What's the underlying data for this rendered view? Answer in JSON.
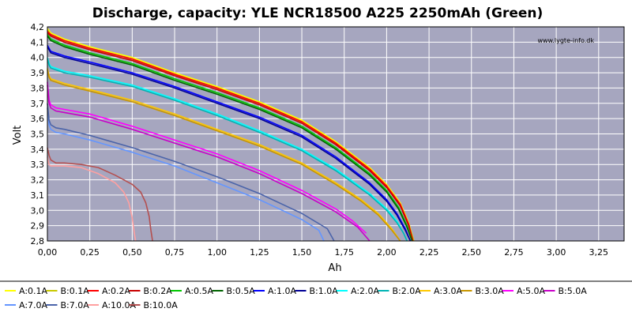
{
  "chart_data": {
    "type": "line",
    "title": "Discharge, capacity: YLE NCR18500 A225 2250mAh (Green)",
    "watermark": "www.lygte-info.dk",
    "xlabel": "Ah",
    "ylabel": "Volt",
    "xlim": [
      0,
      3.4
    ],
    "ylim": [
      2.8,
      4.2
    ],
    "x_ticks": [
      0,
      0.25,
      0.5,
      0.75,
      1.0,
      1.25,
      1.5,
      1.75,
      2.0,
      2.25,
      2.5,
      2.75,
      3.0,
      3.25
    ],
    "x_tick_labels": [
      "0,00",
      "0,25",
      "0,50",
      "0,75",
      "1,00",
      "1,25",
      "1,50",
      "1,75",
      "2,00",
      "2,25",
      "2,50",
      "2,75",
      "3,00",
      "3,25"
    ],
    "y_ticks": [
      2.8,
      2.9,
      3.0,
      3.1,
      3.2,
      3.3,
      3.4,
      3.5,
      3.6,
      3.7,
      3.8,
      3.9,
      4.0,
      4.1,
      4.2
    ],
    "y_tick_labels": [
      "2,8",
      "2,9",
      "3,0",
      "3,1",
      "3,2",
      "3,3",
      "3,4",
      "3,5",
      "3,6",
      "3,7",
      "3,8",
      "3,9",
      "4,0",
      "4,1",
      "4,2"
    ],
    "grid": true,
    "legend_position": "bottom",
    "background_color": "#a6a6bf",
    "series": [
      {
        "name": "A:0.1A",
        "color": "#ffff00",
        "x": [
          0,
          0.02,
          0.1,
          0.25,
          0.5,
          0.75,
          1.0,
          1.25,
          1.5,
          1.7,
          1.9,
          2.0,
          2.08,
          2.13,
          2.16
        ],
        "y": [
          4.19,
          4.16,
          4.12,
          4.07,
          4.0,
          3.9,
          3.81,
          3.71,
          3.59,
          3.45,
          3.28,
          3.17,
          3.05,
          2.92,
          2.8
        ]
      },
      {
        "name": "B:0.1A",
        "color": "#c8c800",
        "x": [
          0,
          0.02,
          0.1,
          0.25,
          0.5,
          0.75,
          1.0,
          1.25,
          1.5,
          1.7,
          1.9,
          2.0,
          2.08,
          2.13,
          2.16
        ],
        "y": [
          4.18,
          4.15,
          4.11,
          4.06,
          3.99,
          3.89,
          3.8,
          3.7,
          3.58,
          3.44,
          3.27,
          3.16,
          3.04,
          2.91,
          2.8
        ]
      },
      {
        "name": "A:0.2A",
        "color": "#ff0000",
        "x": [
          0,
          0.02,
          0.1,
          0.25,
          0.5,
          0.75,
          1.0,
          1.25,
          1.5,
          1.7,
          1.9,
          2.0,
          2.08,
          2.13,
          2.155
        ],
        "y": [
          4.17,
          4.15,
          4.11,
          4.06,
          3.99,
          3.89,
          3.8,
          3.7,
          3.58,
          3.44,
          3.27,
          3.16,
          3.04,
          2.91,
          2.8
        ]
      },
      {
        "name": "B:0.2A",
        "color": "#c80000",
        "x": [
          0,
          0.02,
          0.1,
          0.25,
          0.5,
          0.75,
          1.0,
          1.25,
          1.5,
          1.7,
          1.9,
          2.0,
          2.08,
          2.13,
          2.155
        ],
        "y": [
          4.16,
          4.14,
          4.1,
          4.05,
          3.98,
          3.88,
          3.79,
          3.69,
          3.57,
          3.43,
          3.26,
          3.15,
          3.03,
          2.9,
          2.8
        ]
      },
      {
        "name": "A:0.5A",
        "color": "#00c800",
        "x": [
          0,
          0.02,
          0.1,
          0.25,
          0.5,
          0.75,
          1.0,
          1.25,
          1.5,
          1.7,
          1.9,
          2.0,
          2.07,
          2.12,
          2.15
        ],
        "y": [
          4.15,
          4.12,
          4.08,
          4.03,
          3.96,
          3.86,
          3.77,
          3.67,
          3.55,
          3.41,
          3.24,
          3.13,
          3.02,
          2.9,
          2.8
        ]
      },
      {
        "name": "B:0.5A",
        "color": "#006400",
        "x": [
          0,
          0.02,
          0.1,
          0.25,
          0.5,
          0.75,
          1.0,
          1.25,
          1.5,
          1.7,
          1.9,
          2.0,
          2.07,
          2.12,
          2.15
        ],
        "y": [
          4.14,
          4.11,
          4.07,
          4.02,
          3.95,
          3.85,
          3.76,
          3.66,
          3.54,
          3.4,
          3.23,
          3.12,
          3.01,
          2.89,
          2.8
        ]
      },
      {
        "name": "A:1.0A",
        "color": "#0000ff",
        "x": [
          0,
          0.01,
          0.02,
          0.1,
          0.25,
          0.5,
          0.75,
          1.0,
          1.25,
          1.5,
          1.7,
          1.9,
          2.0,
          2.06,
          2.11,
          2.14
        ],
        "y": [
          4.08,
          4.06,
          4.04,
          4.01,
          3.97,
          3.9,
          3.81,
          3.71,
          3.61,
          3.49,
          3.35,
          3.18,
          3.07,
          2.98,
          2.88,
          2.8
        ]
      },
      {
        "name": "B:1.0A",
        "color": "#000096",
        "x": [
          0,
          0.01,
          0.02,
          0.1,
          0.25,
          0.5,
          0.75,
          1.0,
          1.25,
          1.5,
          1.7,
          1.9,
          2.0,
          2.06,
          2.11,
          2.14
        ],
        "y": [
          4.07,
          4.05,
          4.03,
          4.0,
          3.96,
          3.89,
          3.8,
          3.7,
          3.6,
          3.48,
          3.34,
          3.17,
          3.06,
          2.97,
          2.87,
          2.8
        ]
      },
      {
        "name": "A:2.0A",
        "color": "#00ffff",
        "x": [
          0,
          0.01,
          0.02,
          0.1,
          0.25,
          0.5,
          0.75,
          1.0,
          1.25,
          1.5,
          1.7,
          1.9,
          2.0,
          2.06,
          2.1,
          2.12
        ],
        "y": [
          4.0,
          3.96,
          3.94,
          3.91,
          3.88,
          3.82,
          3.73,
          3.63,
          3.52,
          3.4,
          3.27,
          3.11,
          3.01,
          2.93,
          2.85,
          2.8
        ]
      },
      {
        "name": "B:2.0A",
        "color": "#00b4b4",
        "x": [
          0,
          0.01,
          0.02,
          0.1,
          0.25,
          0.5,
          0.75,
          1.0,
          1.25,
          1.5,
          1.7,
          1.9,
          2.0,
          2.06,
          2.1,
          2.12
        ],
        "y": [
          3.99,
          3.95,
          3.93,
          3.9,
          3.87,
          3.81,
          3.72,
          3.62,
          3.51,
          3.39,
          3.26,
          3.1,
          3.0,
          2.92,
          2.85,
          2.8
        ]
      },
      {
        "name": "A:3.0A",
        "color": "#ffc800",
        "x": [
          0,
          0.01,
          0.02,
          0.1,
          0.25,
          0.5,
          0.75,
          1.0,
          1.25,
          1.5,
          1.7,
          1.85,
          1.95,
          2.03,
          2.08
        ],
        "y": [
          3.93,
          3.88,
          3.86,
          3.83,
          3.79,
          3.72,
          3.63,
          3.53,
          3.43,
          3.31,
          3.18,
          3.07,
          2.98,
          2.88,
          2.8
        ]
      },
      {
        "name": "B:3.0A",
        "color": "#c89600",
        "x": [
          0,
          0.01,
          0.02,
          0.1,
          0.25,
          0.5,
          0.75,
          1.0,
          1.25,
          1.5,
          1.7,
          1.85,
          1.95,
          2.03,
          2.08
        ],
        "y": [
          3.92,
          3.87,
          3.85,
          3.82,
          3.78,
          3.71,
          3.62,
          3.52,
          3.42,
          3.3,
          3.17,
          3.06,
          2.97,
          2.87,
          2.8
        ]
      },
      {
        "name": "A:5.0A",
        "color": "#ff00ff",
        "x": [
          0,
          0.01,
          0.02,
          0.05,
          0.1,
          0.25,
          0.5,
          0.75,
          1.0,
          1.25,
          1.5,
          1.7,
          1.8,
          1.88
        ],
        "y": [
          3.84,
          3.72,
          3.69,
          3.67,
          3.66,
          3.63,
          3.55,
          3.46,
          3.37,
          3.26,
          3.13,
          3.01,
          2.93,
          2.85
        ]
      },
      {
        "name": "B:5.0A",
        "color": "#c800c8",
        "x": [
          0,
          0.01,
          0.02,
          0.05,
          0.1,
          0.25,
          0.5,
          0.75,
          1.0,
          1.25,
          1.5,
          1.7,
          1.83,
          1.9
        ],
        "y": [
          3.82,
          3.7,
          3.67,
          3.65,
          3.64,
          3.61,
          3.53,
          3.44,
          3.35,
          3.24,
          3.11,
          2.99,
          2.89,
          2.8
        ]
      },
      {
        "name": "A:7.0A",
        "color": "#6496ff",
        "x": [
          0,
          0.01,
          0.02,
          0.05,
          0.1,
          0.25,
          0.5,
          0.75,
          1.0,
          1.25,
          1.5,
          1.6,
          1.63
        ],
        "y": [
          3.67,
          3.56,
          3.53,
          3.51,
          3.5,
          3.46,
          3.38,
          3.29,
          3.18,
          3.07,
          2.94,
          2.87,
          2.8
        ]
      },
      {
        "name": "B:7.0A",
        "color": "#4b64aa",
        "x": [
          0,
          0.01,
          0.02,
          0.05,
          0.1,
          0.25,
          0.5,
          0.75,
          1.0,
          1.25,
          1.5,
          1.65,
          1.69
        ],
        "y": [
          3.7,
          3.59,
          3.56,
          3.54,
          3.53,
          3.49,
          3.41,
          3.32,
          3.22,
          3.11,
          2.98,
          2.88,
          2.8
        ]
      },
      {
        "name": "A:10.0A",
        "color": "#ffa0a0",
        "x": [
          0,
          0.01,
          0.02,
          0.05,
          0.1,
          0.2,
          0.3,
          0.4,
          0.45,
          0.48,
          0.5,
          0.51,
          0.52
        ],
        "y": [
          3.35,
          3.3,
          3.29,
          3.29,
          3.29,
          3.28,
          3.24,
          3.18,
          3.12,
          3.05,
          2.95,
          2.87,
          2.8
        ]
      },
      {
        "name": "B:10.0A",
        "color": "#b45050",
        "x": [
          0,
          0.01,
          0.02,
          0.05,
          0.1,
          0.2,
          0.3,
          0.4,
          0.5,
          0.55,
          0.58,
          0.6,
          0.61,
          0.62
        ],
        "y": [
          3.41,
          3.36,
          3.33,
          3.31,
          3.31,
          3.3,
          3.28,
          3.23,
          3.17,
          3.12,
          3.05,
          2.96,
          2.87,
          2.8
        ]
      }
    ]
  }
}
